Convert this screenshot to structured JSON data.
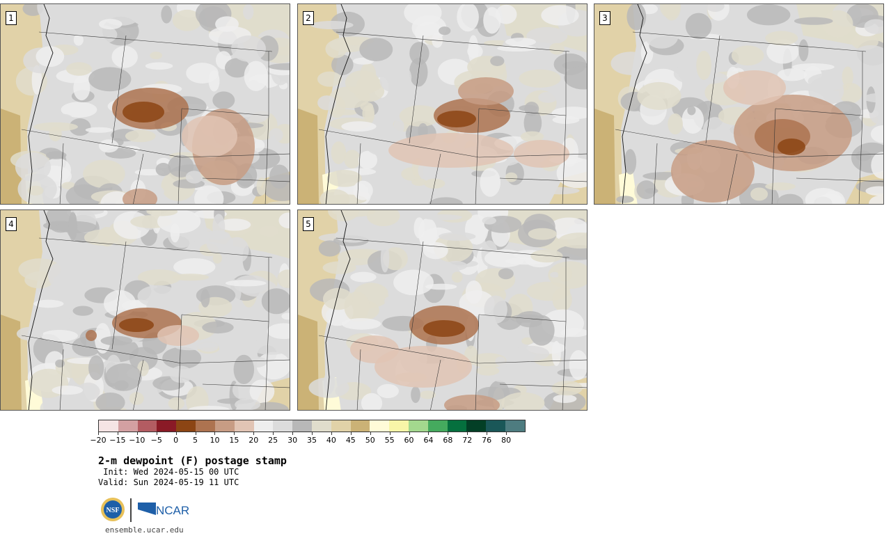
{
  "panels": [
    {
      "label": "1"
    },
    {
      "label": "2"
    },
    {
      "label": "3"
    },
    {
      "label": "4"
    },
    {
      "label": "5"
    }
  ],
  "colorbar": {
    "colors": [
      "#f5e4e4",
      "#d3a0a2",
      "#b35c62",
      "#8a1a26",
      "#8c4514",
      "#ad7350",
      "#c79c84",
      "#e1c4b4",
      "#eeeeee",
      "#dcdcdc",
      "#b8b8b8",
      "#e0ddcc",
      "#e1d2a8",
      "#cbb276",
      "#fffbd8",
      "#f8f5a8",
      "#a3d88e",
      "#45aa5e",
      "#05703e",
      "#033f26",
      "#1a5758",
      "#4e7c80"
    ],
    "tick_labels": [
      "-20",
      "-15",
      "-10",
      "-5",
      "0",
      "5",
      "10",
      "15",
      "20",
      "25",
      "30",
      "35",
      "40",
      "45",
      "50",
      "55",
      "60",
      "64",
      "68",
      "72",
      "76",
      "80"
    ]
  },
  "title": "2-m dewpoint (F) postage stamp",
  "init": " Init: Wed 2024-05-15 00 UTC",
  "valid": "Valid: Sun 2024-05-19 11 UTC",
  "logos": {
    "nsf": "NSF",
    "ncar": "NCAR"
  },
  "website": "ensemble.ucar.edu"
}
